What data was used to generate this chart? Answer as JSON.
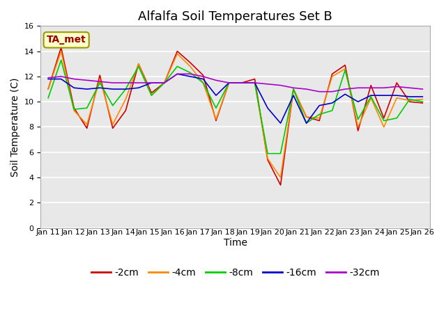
{
  "title": "Alfalfa Soil Temperatures Set B",
  "xlabel": "Time",
  "ylabel": "Soil Temperature (C)",
  "ylim": [
    0,
    16
  ],
  "yticks": [
    0,
    2,
    4,
    6,
    8,
    10,
    12,
    14,
    16
  ],
  "x_labels": [
    "Jan 11",
    "Jan 12",
    "Jan 13",
    "Jan 14",
    "Jan 15",
    "Jan 16",
    "Jan 17",
    "Jan 18",
    "Jan 19",
    "Jan 20",
    "Jan 21",
    "Jan 22",
    "Jan 23",
    "Jan 24",
    "Jan 25",
    "Jan 26"
  ],
  "annotation_label": "TA_met",
  "annotation_color": "#990000",
  "annotation_bg": "#ffffcc",
  "annotation_edge": "#999900",
  "series": {
    "-2cm": {
      "color": "#cc0000",
      "values": [
        11.0,
        14.3,
        9.5,
        7.9,
        12.1,
        7.9,
        9.3,
        13.0,
        10.7,
        11.5,
        14.0,
        13.1,
        12.1,
        8.5,
        11.5,
        11.5,
        11.8,
        5.4,
        3.4,
        11.0,
        8.8,
        8.5,
        12.2,
        12.9,
        7.7,
        11.3,
        8.7,
        11.5,
        10.0,
        9.9
      ]
    },
    "-4cm": {
      "color": "#ff8800",
      "values": [
        11.0,
        14.0,
        9.3,
        8.2,
        11.8,
        8.2,
        10.2,
        13.0,
        10.5,
        11.5,
        13.8,
        12.8,
        11.5,
        8.6,
        11.5,
        11.5,
        11.5,
        5.5,
        4.0,
        11.0,
        8.8,
        8.7,
        12.0,
        12.6,
        8.0,
        10.3,
        8.0,
        10.3,
        10.1,
        10.2
      ]
    },
    "-8cm": {
      "color": "#00cc00",
      "values": [
        10.3,
        13.3,
        9.4,
        9.5,
        11.5,
        9.7,
        11.0,
        12.8,
        10.5,
        11.5,
        12.8,
        12.3,
        11.5,
        9.5,
        11.5,
        11.5,
        11.5,
        5.9,
        5.9,
        11.0,
        8.3,
        9.0,
        9.3,
        12.5,
        8.6,
        10.4,
        8.5,
        8.7,
        10.2,
        10.0
      ]
    },
    "-16cm": {
      "color": "#0000cc",
      "values": [
        11.8,
        11.8,
        11.1,
        11.0,
        11.1,
        11.0,
        11.0,
        11.1,
        11.5,
        11.5,
        12.2,
        12.0,
        11.8,
        10.5,
        11.5,
        11.5,
        11.5,
        9.5,
        8.3,
        10.5,
        8.3,
        9.7,
        9.9,
        10.6,
        10.0,
        10.5,
        10.5,
        10.5,
        10.4,
        10.4
      ]
    },
    "-32cm": {
      "color": "#aa00cc",
      "values": [
        11.9,
        12.0,
        11.8,
        11.7,
        11.6,
        11.5,
        11.5,
        11.5,
        11.5,
        11.5,
        12.2,
        12.2,
        12.0,
        11.7,
        11.5,
        11.5,
        11.5,
        11.4,
        11.3,
        11.1,
        11.0,
        10.8,
        10.8,
        11.0,
        11.1,
        11.1,
        11.1,
        11.2,
        11.1,
        11.0
      ]
    }
  },
  "bg_color": "#e8e8e8",
  "grid_color": "#ffffff",
  "title_fontsize": 13,
  "axis_fontsize": 10,
  "tick_fontsize": 8,
  "legend_fontsize": 10,
  "linewidth": 1.2
}
